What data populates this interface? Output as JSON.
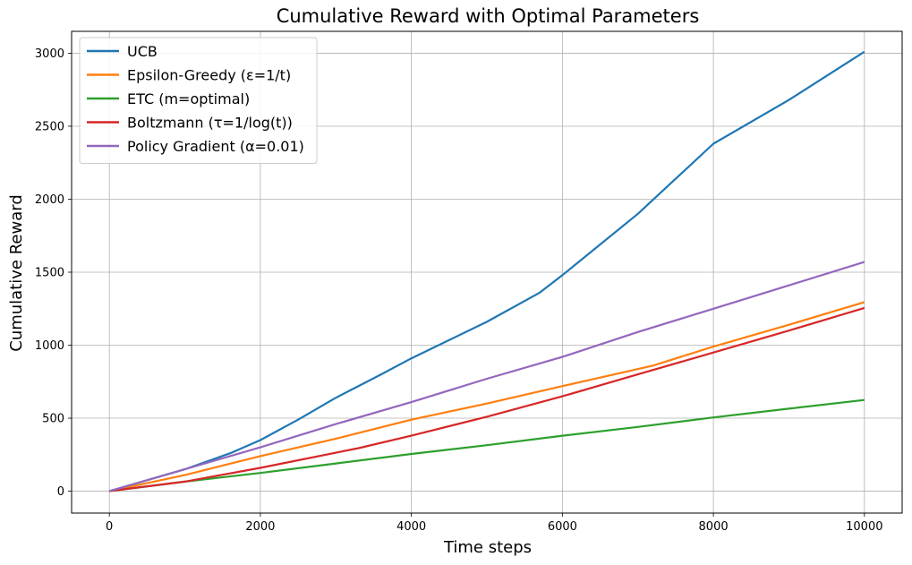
{
  "chart_data": {
    "type": "line",
    "title": "Cumulative Reward with Optimal Parameters",
    "xlabel": "Time steps",
    "ylabel": "Cumulative Reward",
    "xlim": [
      -500,
      10500
    ],
    "ylim": [
      -150,
      3150
    ],
    "xticks": [
      0,
      2000,
      4000,
      6000,
      8000,
      10000
    ],
    "yticks": [
      0,
      500,
      1000,
      1500,
      2000,
      2500,
      3000
    ],
    "grid": true,
    "legend_position": "top-left",
    "series": [
      {
        "name": "UCB",
        "color": "#1f77b4",
        "x": [
          0,
          1000,
          1600,
          2000,
          2500,
          3000,
          3600,
          4000,
          5000,
          5700,
          6000,
          7000,
          8000,
          9000,
          10000
        ],
        "y": [
          0,
          150,
          260,
          350,
          490,
          640,
          800,
          910,
          1160,
          1360,
          1480,
          1900,
          2380,
          2680,
          3010
        ]
      },
      {
        "name": "Epsilon-Greedy (ε=1/t)",
        "color": "#ff7f0e",
        "x": [
          0,
          1000,
          2000,
          3000,
          4000,
          5000,
          6000,
          7200,
          8000,
          9000,
          10000
        ],
        "y": [
          0,
          110,
          240,
          360,
          490,
          600,
          720,
          860,
          990,
          1140,
          1295
        ]
      },
      {
        "name": "ETC (m=optimal)",
        "color": "#2ca02c",
        "x": [
          0,
          1000,
          2000,
          3000,
          4000,
          5000,
          6000,
          7000,
          8000,
          9000,
          10000
        ],
        "y": [
          0,
          65,
          125,
          190,
          255,
          315,
          380,
          440,
          505,
          565,
          625
        ]
      },
      {
        "name": "Boltzmann (τ=1/log(t))",
        "color": "#d62728",
        "x": [
          0,
          1000,
          2000,
          3300,
          4000,
          5000,
          6000,
          7000,
          8000,
          9000,
          10000
        ],
        "y": [
          0,
          65,
          160,
          295,
          380,
          510,
          650,
          800,
          950,
          1100,
          1255
        ]
      },
      {
        "name": "Policy Gradient (α=0.01)",
        "color": "#9467bd",
        "x": [
          0,
          1000,
          2000,
          3000,
          4000,
          5000,
          6000,
          7000,
          8000,
          9000,
          10000
        ],
        "y": [
          0,
          150,
          300,
          460,
          610,
          770,
          920,
          1090,
          1250,
          1410,
          1570
        ]
      }
    ]
  }
}
